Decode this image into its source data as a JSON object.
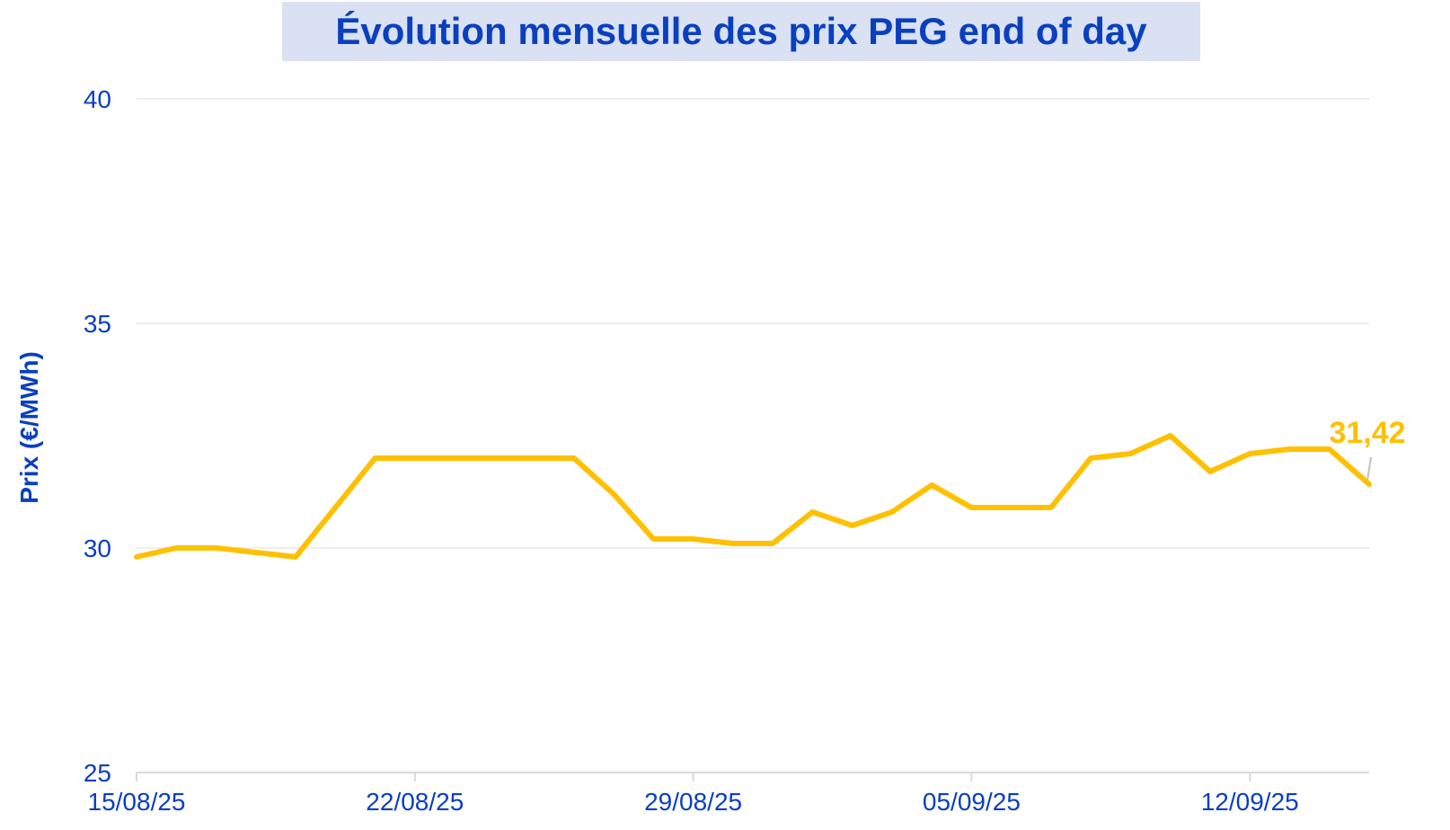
{
  "chart_data": {
    "type": "line",
    "title": "Évolution mensuelle des prix PEG end of day",
    "ylabel": "Prix (€/MWh)",
    "xlabel": "",
    "ylim": [
      25,
      40
    ],
    "yticks": [
      "25",
      "30",
      "35",
      "40"
    ],
    "xticks": [
      "15/08/25",
      "22/08/25",
      "29/08/25",
      "05/09/25",
      "12/09/25"
    ],
    "grid": "horizontal",
    "legend": "none",
    "line_color": "#ffc000",
    "text_color": "#0a3fbf",
    "x": [
      "15/08/25",
      "16/08/25",
      "17/08/25",
      "18/08/25",
      "19/08/25",
      "21/08/25",
      "23/08/25",
      "25/08/25",
      "26/08/25",
      "27/08/25",
      "28/08/25",
      "29/08/25",
      "30/08/25",
      "31/08/25",
      "01/09/25",
      "02/09/25",
      "03/09/25",
      "04/09/25",
      "05/09/25",
      "06/09/25",
      "07/09/25",
      "08/09/25",
      "09/09/25",
      "10/09/25",
      "11/09/25",
      "12/09/25",
      "13/09/25",
      "14/09/25",
      "15/09/25"
    ],
    "values": [
      29.8,
      30.0,
      30.0,
      29.9,
      29.8,
      32.0,
      32.0,
      32.0,
      32.0,
      31.2,
      30.2,
      30.2,
      30.1,
      30.1,
      30.8,
      30.5,
      30.8,
      31.4,
      30.9,
      30.9,
      30.9,
      32.0,
      32.1,
      32.5,
      31.7,
      32.1,
      32.2,
      32.2,
      31.42
    ],
    "data_label": "31,42"
  }
}
